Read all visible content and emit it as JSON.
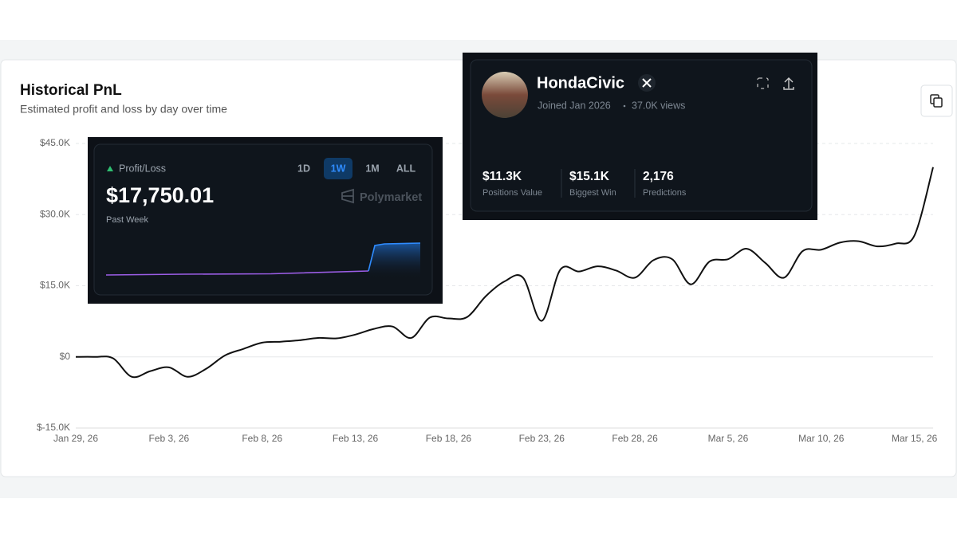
{
  "header": {
    "title": "Historical PnL",
    "subtitle": "Estimated profit and loss by day over time"
  },
  "chart_data": {
    "type": "line",
    "x": [
      "Jan 29, 26",
      "Jan 30, 26",
      "Jan 31, 26",
      "Feb 1, 26",
      "Feb 2, 26",
      "Feb 3, 26",
      "Feb 4, 26",
      "Feb 5, 26",
      "Feb 6, 26",
      "Feb 7, 26",
      "Feb 8, 26",
      "Feb 9, 26",
      "Feb 10, 26",
      "Feb 11, 26",
      "Feb 12, 26",
      "Feb 13, 26",
      "Feb 14, 26",
      "Feb 15, 26",
      "Feb 16, 26",
      "Feb 17, 26",
      "Feb 18, 26",
      "Feb 19, 26",
      "Feb 20, 26",
      "Feb 21, 26",
      "Feb 22, 26",
      "Feb 23, 26",
      "Feb 24, 26",
      "Feb 25, 26",
      "Feb 26, 26",
      "Feb 27, 26",
      "Feb 28, 26",
      "Mar 1, 26",
      "Mar 2, 26",
      "Mar 3, 26",
      "Mar 4, 26",
      "Mar 5, 26",
      "Mar 6, 26",
      "Mar 7, 26",
      "Mar 8, 26",
      "Mar 9, 26",
      "Mar 10, 26",
      "Mar 11, 26",
      "Mar 12, 26",
      "Mar 13, 26",
      "Mar 14, 26",
      "Mar 15, 26",
      "Mar 16, 26"
    ],
    "series": [
      {
        "color": "#111111",
        "values": [
          0,
          0,
          -300,
          -4200,
          -3000,
          -2200,
          -4200,
          -2500,
          300,
          1700,
          3000,
          3200,
          3500,
          4000,
          3900,
          4700,
          5900,
          6400,
          4000,
          8300,
          8100,
          8400,
          12800,
          15900,
          16700,
          7600,
          18400,
          18000,
          19100,
          18200,
          16700,
          20400,
          20600,
          15300,
          20100,
          20600,
          22800,
          19800,
          16700,
          22300,
          22600,
          24100,
          24400,
          23300,
          23900,
          25600,
          40000
        ]
      }
    ],
    "ylim": [
      -15000,
      45000
    ],
    "yticks": [
      {
        "value": -15000,
        "label": "$-15.0K"
      },
      {
        "value": 0,
        "label": "$0"
      },
      {
        "value": 15000,
        "label": "$15.0K"
      },
      {
        "value": 30000,
        "label": "$30.0K"
      },
      {
        "value": 45000,
        "label": "$45.0K"
      }
    ],
    "grid": true
  },
  "pnl_card": {
    "label": "Profit/Loss",
    "value": "$17,750.01",
    "period": "Past Week",
    "ranges": [
      "1D",
      "1W",
      "1M",
      "ALL"
    ],
    "active_range": 1,
    "brand": "Polymarket"
  },
  "profile": {
    "name": "HondaCivic",
    "joined": "Joined Jan 2026",
    "views": "37.0K views",
    "stats": [
      {
        "value": "$11.3K",
        "label": "Positions Value"
      },
      {
        "value": "$15.1K",
        "label": "Biggest Win"
      },
      {
        "value": "2,176",
        "label": "Predictions"
      }
    ]
  }
}
